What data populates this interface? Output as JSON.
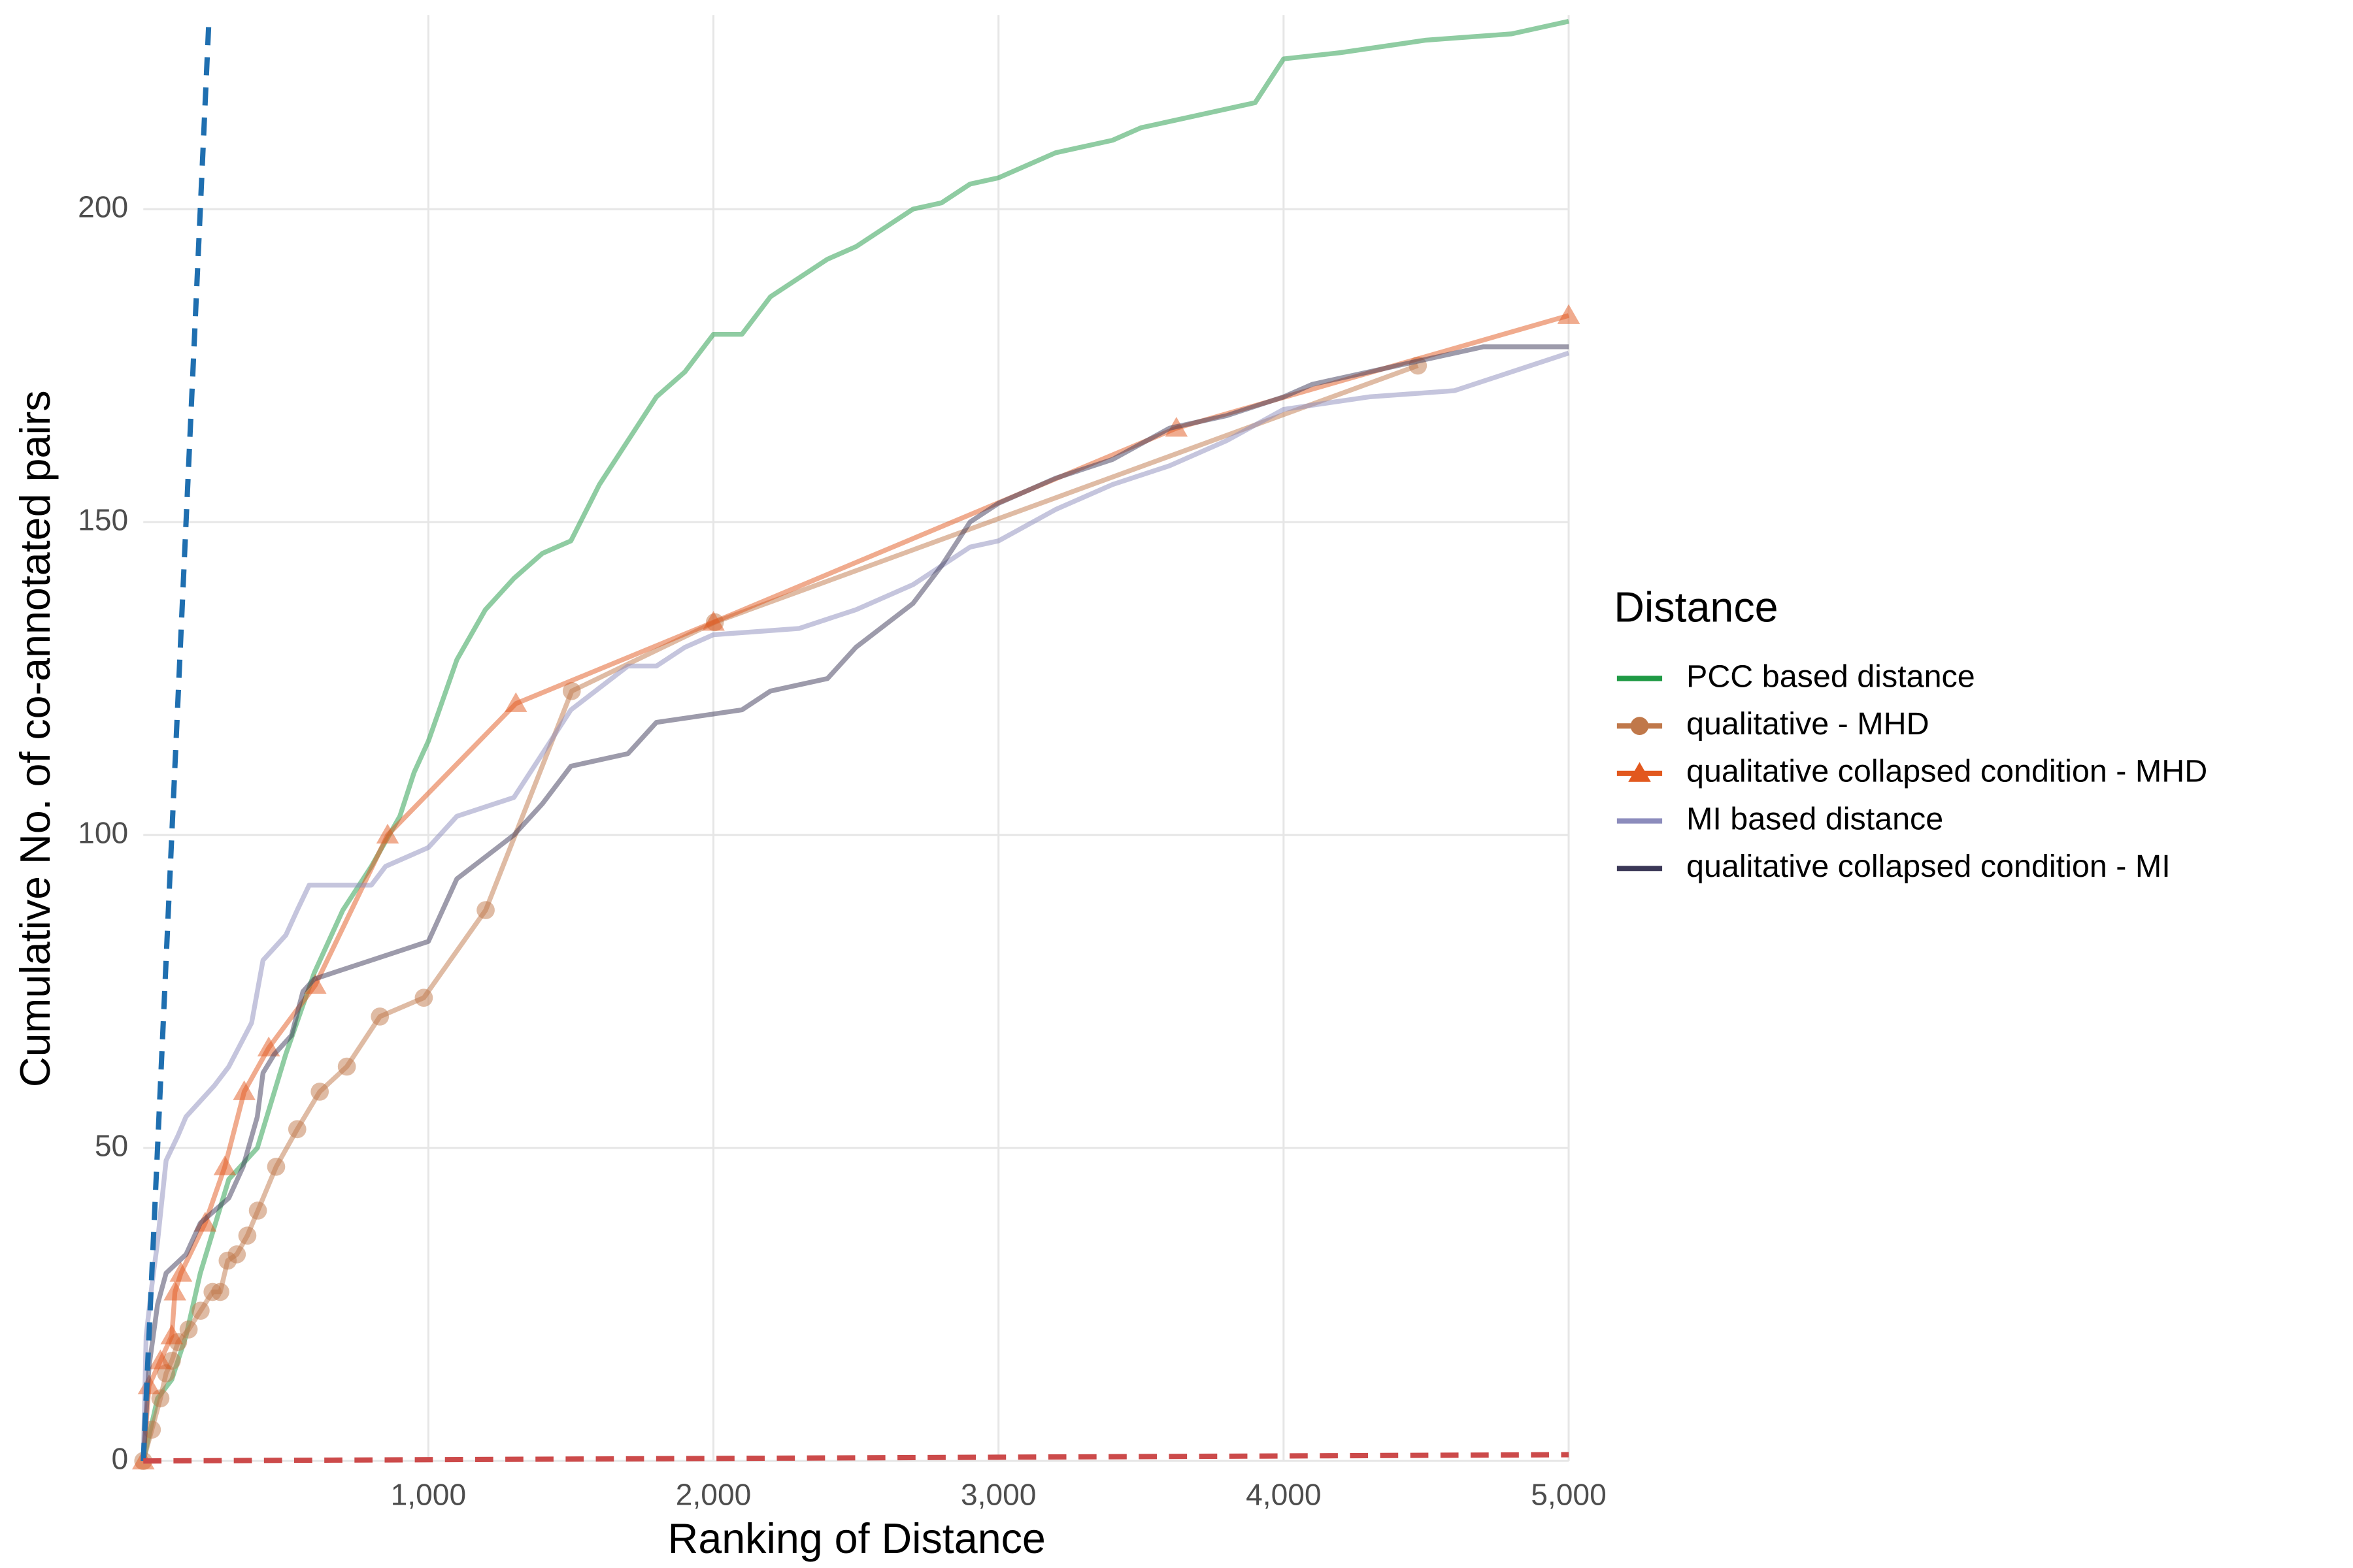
{
  "chart_data": {
    "type": "line",
    "x_label": "Ranking of Distance",
    "y_label": "Cumulative No. of co-annotated pairs",
    "legend_title": "Distance",
    "legend_position": "right",
    "grid": true,
    "line_opacity": 0.5,
    "xlim": [
      0,
      5000
    ],
    "ylim": [
      0,
      231
    ],
    "xticks": [
      {
        "value": 1000,
        "label": "1,000"
      },
      {
        "value": 2000,
        "label": "2,000"
      },
      {
        "value": 3000,
        "label": "3,000"
      },
      {
        "value": 4000,
        "label": "4,000"
      },
      {
        "value": 5000,
        "label": "5,000"
      }
    ],
    "yticks": [
      0,
      50,
      100,
      150,
      200
    ],
    "series": [
      {
        "name": "PCC based distance",
        "color": "#1f9a45",
        "x": [
          0,
          50,
          100,
          150,
          200,
          300,
          400,
          500,
          600,
          700,
          800,
          900,
          950,
          1000,
          1100,
          1200,
          1300,
          1400,
          1500,
          1600,
          1700,
          1800,
          1900,
          2000,
          2100,
          2200,
          2300,
          2400,
          2500,
          2600,
          2700,
          2800,
          2900,
          3000,
          3100,
          3200,
          3400,
          3500,
          3700,
          3900,
          4000,
          4200,
          4500,
          4800,
          5000
        ],
        "values": [
          0,
          10,
          13,
          20,
          30,
          45,
          50,
          65,
          78,
          88,
          95,
          103,
          110,
          115,
          128,
          136,
          141,
          145,
          147,
          156,
          163,
          170,
          174,
          180,
          180,
          186,
          189,
          192,
          194,
          197,
          200,
          201,
          204,
          205,
          207,
          209,
          211,
          213,
          215,
          217,
          224,
          225,
          227,
          228,
          230
        ]
      },
      {
        "name": "qualitative - MHD",
        "color": "#c0784a",
        "marker": "circle",
        "x": [
          0,
          30,
          60,
          80,
          100,
          122,
          159,
          201,
          243,
          270,
          296,
          328,
          365,
          402,
          466,
          540,
          619,
          714,
          830,
          984,
          1201,
          1503,
          2005,
          4471
        ],
        "values": [
          0,
          5,
          10,
          14,
          16,
          19,
          21,
          24,
          27,
          27,
          32,
          33,
          36,
          40,
          47,
          53,
          59,
          63,
          71,
          74,
          88,
          123,
          134,
          175
        ]
      },
      {
        "name": "qualitative collapsed condition - MHD",
        "color": "#e2581e",
        "marker": "triangle",
        "x": [
          0,
          20,
          60,
          100,
          111,
          132,
          217,
          286,
          354,
          440,
          603,
          857,
          1307,
          2000,
          3624,
          5000
        ],
        "values": [
          0,
          12,
          16,
          20,
          27,
          30,
          38,
          47,
          59,
          66,
          76,
          100,
          121,
          134,
          165,
          183
        ]
      },
      {
        "name": "MI based distance",
        "color": "#8c8cbc",
        "x": [
          0,
          10,
          30,
          50,
          80,
          122,
          150,
          250,
          300,
          380,
          420,
          500,
          540,
          582,
          800,
          850,
          1000,
          1100,
          1300,
          1400,
          1500,
          1700,
          1800,
          1900,
          2000,
          2300,
          2500,
          2700,
          2900,
          3000,
          3200,
          3400,
          3600,
          3800,
          4000,
          4300,
          4600,
          4800,
          5000
        ],
        "values": [
          0,
          20,
          28,
          35,
          48,
          52,
          55,
          60,
          63,
          70,
          80,
          84,
          88,
          92,
          92,
          95,
          98,
          103,
          106,
          113,
          120,
          127,
          127,
          130,
          132,
          133,
          136,
          140,
          146,
          147,
          152,
          156,
          159,
          163,
          168,
          170,
          171,
          174,
          177
        ]
      },
      {
        "name": "qualitative collapsed condition - MI",
        "color": "#3b3857",
        "x": [
          0,
          20,
          50,
          80,
          150,
          200,
          300,
          350,
          400,
          420,
          460,
          520,
          560,
          600,
          800,
          1000,
          1050,
          1100,
          1300,
          1400,
          1500,
          1700,
          1800,
          2100,
          2200,
          2400,
          2500,
          2700,
          2800,
          2900,
          3000,
          3200,
          3400,
          3600,
          3800,
          4000,
          4100,
          4500,
          4700,
          5000
        ],
        "values": [
          0,
          15,
          25,
          30,
          33,
          38,
          42,
          47,
          55,
          62,
          65,
          68,
          75,
          77,
          80,
          83,
          88,
          93,
          100,
          105,
          111,
          113,
          118,
          120,
          123,
          125,
          130,
          137,
          143,
          150,
          153,
          157,
          160,
          165,
          167,
          170,
          172,
          176,
          178,
          178
        ]
      },
      {
        "color": "#1f6fb0",
        "dashed": true,
        "x": [
          0,
          231
        ],
        "values": [
          0,
          231
        ]
      },
      {
        "color": "#cc4a4a",
        "dashed": true,
        "x": [
          0,
          5000
        ],
        "values": [
          0,
          1
        ]
      }
    ]
  }
}
